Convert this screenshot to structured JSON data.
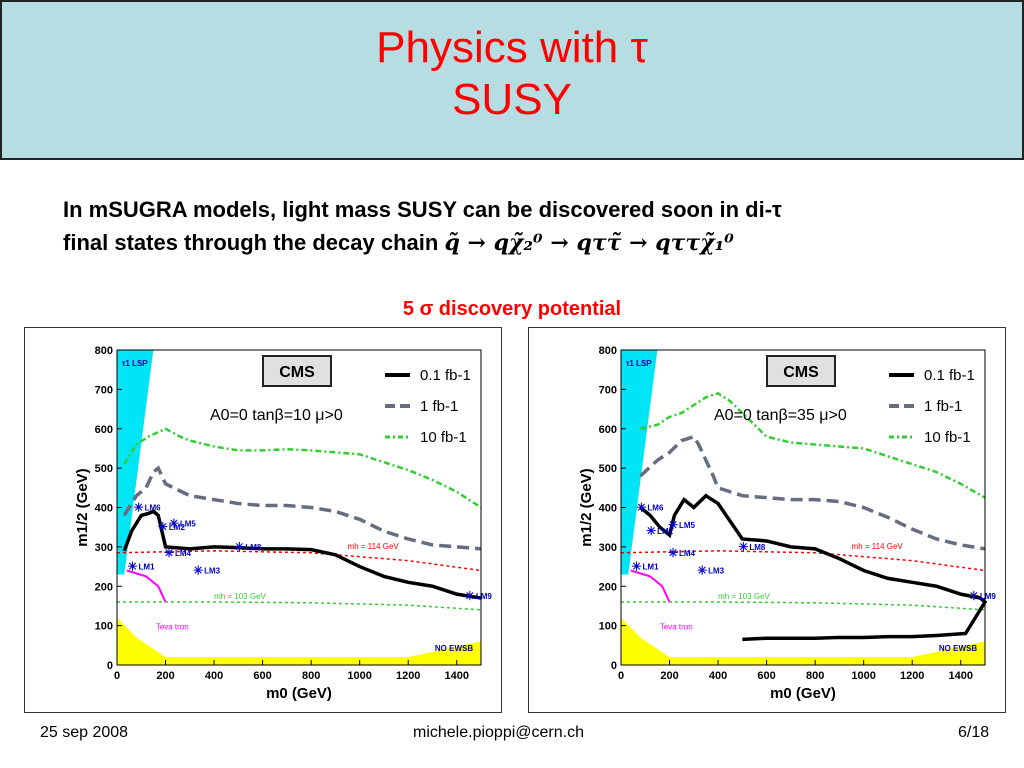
{
  "slide": {
    "title_line1": "Physics with τ",
    "title_line2": "SUSY",
    "subtitle_line1": "In mSUGRA models, light mass SUSY can be discovered soon in di-τ",
    "subtitle_line2_prefix": "final states  through the decay chain",
    "decay_chain": "q̃ → qχ̃₂⁰ → qττ̃ → qττχ̃₁⁰",
    "discovery_label": "5 σ discovery potential"
  },
  "footer": {
    "date": "25 sep 2008",
    "email": "michele.pioppi@cern.ch",
    "page": "6/18"
  },
  "colors": {
    "title_bg": "#b6dde2",
    "title_text": "#ff0000",
    "lsp_region": "#00e5f5",
    "no_ewsb_region": "#ffff00",
    "curve_01fb": "#000000",
    "curve_1fb": "#666d80",
    "curve_10fb": "#33cc33",
    "higgs_114": "#ff0000",
    "higgs_103": "#33cc33",
    "tevatron": "#ff00ff",
    "benchmark": "#0000cc"
  },
  "chart_data": [
    {
      "type": "line",
      "title": "CMS",
      "annotation": "A0=0   tanβ=10   μ>0",
      "xlabel": "m0 (GeV)",
      "ylabel": "m1/2 (GeV)",
      "xlim": [
        0,
        1500
      ],
      "ylim": [
        0,
        800
      ],
      "x_ticks": [
        "0",
        "200",
        "400",
        "600",
        "800",
        "1000",
        "1200",
        "1400"
      ],
      "y_ticks": [
        "0",
        "100",
        "200",
        "300",
        "400",
        "500",
        "600",
        "700",
        "800"
      ],
      "legend_position": "top-right",
      "series": [
        {
          "name": "0.1 fb-1",
          "style": "solid",
          "x": [
            30,
            60,
            100,
            130,
            150,
            170,
            200,
            300,
            400,
            500,
            600,
            700,
            800,
            900,
            1000,
            1100,
            1200,
            1300,
            1400,
            1500
          ],
          "y": [
            290,
            340,
            380,
            385,
            390,
            380,
            300,
            295,
            300,
            298,
            295,
            295,
            293,
            280,
            250,
            225,
            210,
            200,
            180,
            170
          ]
        },
        {
          "name": "1 fb-1",
          "style": "dashed",
          "x": [
            30,
            80,
            120,
            150,
            170,
            200,
            300,
            400,
            500,
            600,
            700,
            800,
            900,
            1000,
            1100,
            1200,
            1300,
            1400,
            1500
          ],
          "y": [
            380,
            430,
            450,
            490,
            500,
            460,
            430,
            420,
            410,
            405,
            405,
            400,
            390,
            370,
            340,
            320,
            305,
            300,
            295
          ]
        },
        {
          "name": "10 fb-1",
          "style": "dash-dot",
          "x": [
            30,
            80,
            130,
            200,
            260,
            300,
            400,
            500,
            600,
            700,
            800,
            900,
            1000,
            1100,
            1200,
            1300,
            1400,
            1500
          ],
          "y": [
            510,
            560,
            580,
            600,
            580,
            570,
            555,
            545,
            545,
            548,
            545,
            540,
            535,
            515,
            495,
            470,
            440,
            400
          ]
        }
      ],
      "regions": [
        "τ1 LSP",
        "NO EWSB",
        "Teva tron"
      ],
      "reference_lines": [
        {
          "label": "mh = 114 GeV",
          "x": [
            0,
            400,
            800,
            1200,
            1500
          ],
          "y": [
            285,
            290,
            285,
            265,
            240
          ]
        },
        {
          "label": "mh = 103 GeV",
          "x": [
            0,
            400,
            800,
            1200,
            1500
          ],
          "y": [
            160,
            160,
            158,
            152,
            140
          ]
        }
      ],
      "benchmarks": [
        {
          "label": "LM6",
          "x": 85,
          "y": 400
        },
        {
          "label": "LM2",
          "x": 185,
          "y": 350
        },
        {
          "label": "LM5",
          "x": 230,
          "y": 360
        },
        {
          "label": "LM4",
          "x": 210,
          "y": 285
        },
        {
          "label": "LM8",
          "x": 500,
          "y": 300
        },
        {
          "label": "LM1",
          "x": 60,
          "y": 250
        },
        {
          "label": "LM3",
          "x": 330,
          "y": 240
        },
        {
          "label": "LM9",
          "x": 1450,
          "y": 175
        }
      ]
    },
    {
      "type": "line",
      "title": "CMS",
      "annotation": "A0=0   tanβ=35   μ>0",
      "xlabel": "m0 (GeV)",
      "ylabel": "m1/2 (GeV)",
      "xlim": [
        0,
        1500
      ],
      "ylim": [
        0,
        800
      ],
      "x_ticks": [
        "0",
        "200",
        "400",
        "600",
        "800",
        "1000",
        "1200",
        "1400"
      ],
      "y_ticks": [
        "0",
        "100",
        "200",
        "300",
        "400",
        "500",
        "600",
        "700",
        "800"
      ],
      "legend_position": "top-right",
      "series": [
        {
          "name": "0.1 fb-1",
          "style": "solid",
          "x": [
            80,
            120,
            160,
            200,
            220,
            260,
            300,
            350,
            400,
            500,
            600,
            700,
            800,
            900,
            1000,
            1100,
            1200,
            1300,
            1400,
            1480,
            1500,
            1480,
            1420,
            1300,
            1200,
            1100,
            1000,
            900,
            800,
            700,
            600,
            500
          ],
          "y": [
            400,
            380,
            350,
            330,
            380,
            420,
            400,
            430,
            410,
            320,
            315,
            300,
            295,
            270,
            240,
            220,
            210,
            200,
            180,
            170,
            160,
            140,
            80,
            75,
            72,
            72,
            70,
            70,
            68,
            68,
            68,
            65
          ]
        },
        {
          "name": "1 fb-1",
          "style": "dashed",
          "x": [
            80,
            150,
            200,
            250,
            300,
            320,
            350,
            380,
            400,
            500,
            600,
            700,
            800,
            900,
            1000,
            1100,
            1200,
            1300,
            1400,
            1500
          ],
          "y": [
            480,
            520,
            540,
            570,
            580,
            560,
            520,
            480,
            450,
            430,
            425,
            420,
            420,
            415,
            400,
            375,
            345,
            320,
            305,
            295
          ]
        },
        {
          "name": "10 fb-1",
          "style": "dash-dot",
          "x": [
            80,
            150,
            200,
            250,
            300,
            350,
            400,
            450,
            500,
            600,
            700,
            800,
            900,
            1000,
            1100,
            1200,
            1300,
            1400,
            1500
          ],
          "y": [
            600,
            610,
            630,
            640,
            660,
            680,
            690,
            670,
            640,
            580,
            565,
            560,
            555,
            550,
            530,
            510,
            490,
            460,
            425
          ]
        }
      ],
      "regions": [
        "τ1 LSP",
        "NO EWSB",
        "Teva tron"
      ],
      "reference_lines": [
        {
          "label": "mh = 114 GeV",
          "x": [
            0,
            400,
            800,
            1200,
            1500
          ],
          "y": [
            285,
            290,
            285,
            265,
            240
          ]
        },
        {
          "label": "mh = 103 GeV",
          "x": [
            0,
            400,
            800,
            1200,
            1500
          ],
          "y": [
            160,
            160,
            158,
            152,
            140
          ]
        }
      ],
      "benchmarks": [
        {
          "label": "LM6",
          "x": 80,
          "y": 400
        },
        {
          "label": "LM2",
          "x": 120,
          "y": 340
        },
        {
          "label": "LM5",
          "x": 210,
          "y": 355
        },
        {
          "label": "LM4",
          "x": 210,
          "y": 285
        },
        {
          "label": "LM8",
          "x": 500,
          "y": 300
        },
        {
          "label": "LM1",
          "x": 60,
          "y": 250
        },
        {
          "label": "LM3",
          "x": 330,
          "y": 240
        },
        {
          "label": "LM9",
          "x": 1450,
          "y": 175
        }
      ]
    }
  ]
}
